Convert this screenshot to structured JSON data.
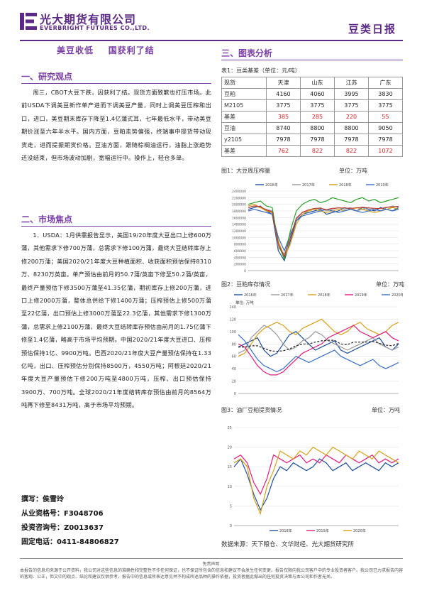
{
  "header": {
    "company_cn": "光大期货有限公司",
    "company_en": "EVERBRIGHT FUTURES CO.,LTD.",
    "report_title": "豆类日报",
    "brand_color": "#5b2a86"
  },
  "headline": "美豆收低    国获利了结",
  "left": {
    "section1_title": "一、研究观点",
    "section1_text": "周三，CBOT大豆下跌，因获利了结。现货方面致歉也打压市场。此前USDA下调美豆新作单产进而下调美豆产量，同时上调美豆压榨和出口，进口，美豆期末库存下降至1.4亿蒲式耳，七年最低水平，带动美豆期价涨至六年半水平。国内方面，豆粕走势偏强，终端事中提货带动现货走，进而提振期货价格。豆油方面，跟随棕榈油运行，油脂上涨趋势还没结束，但市场波动加剧，宽幅运行中。操作上，轻仓多单。",
    "section2_title": "二、市场焦点",
    "section2_text": "1．USDA：1月供需报告显示，美国19/20年度大豆出口上修600万蒲，其他需求下修700万蒲，总需求下修100万蒲，最终大豆结转库存上修200万蒲；美国2020/21年度大豆种植面积、收获面积预估保持8310万、8230万英亩。单产预估由前月的50.7蒲/英亩下修至50.2蒲/英亩，最终产量预估下修3500万蒲至41.35亿蒲，期初库存上修200万蒲，进口上修2000万蒲，整体总供给下修1400万蒲；压榨预估上修500万蒲至22亿蒲，出口预估上修3000万蒲至22.3亿蒲，其他需求下修1300万蒲，总需求上修2100万蒲，最终大豆结转库存预估由前月的1.75亿蒲下修至1.4亿蒲，略高于市场平均预期。中国2020/21年度大豆进口、压榨预估保持1亿、9900万吨。巴西2020/21年度大豆产量预估保持在1.33亿吨，出口、压榨预估分别保持8500万，4550万吨；阿根廷2020/21年度大豆产量预估下修200万吨至4800万吨，压榨、出口预估保持3900万、700万吨。全球2020/21年度结转库存预估由前月的8564万吨再下修至8431万吨，高于市场平均预期。",
    "author_label": "撰写：侯雪玲",
    "cert_label": "从业资格号：F3048706",
    "consult_label": "投资咨询号：Z0013637",
    "phone_label": "固定电话：0411-84806827"
  },
  "right": {
    "section3_title": "三、图表分析",
    "table_caption": "表1：豆类基差（单位：元/吨）",
    "table_header": [
      "现货",
      "天津",
      "山东",
      "江苏",
      "广东"
    ],
    "table_rows": [
      {
        "name": "豆粕",
        "values": [
          "4160",
          "4060",
          "3995",
          "3830"
        ],
        "red": false
      },
      {
        "name": "M2105",
        "values": [
          "3775",
          "3775",
          "3775",
          "3775"
        ],
        "red": false
      },
      {
        "name": "基差",
        "values": [
          "385",
          "285",
          "220",
          "55"
        ],
        "red": true
      },
      {
        "name": "豆油",
        "values": [
          "8740",
          "8800",
          "8800",
          "9050"
        ],
        "red": false
      },
      {
        "name": "y2105",
        "values": [
          "7978",
          "7978",
          "7978",
          "7978"
        ],
        "red": false
      },
      {
        "name": "基差",
        "values": [
          "762",
          "822",
          "822",
          "1072"
        ],
        "red": true
      }
    ],
    "chart1_caption": "图1：大豆周压榨量",
    "chart1_unit": "单位：万吨",
    "chart2_caption": "图2：豆粕库存情况",
    "chart2_unit": "单位：万吨",
    "chart3_caption": "图3：油厂豆粕提货情况",
    "chart3_unit": "单位：万吨",
    "source": "数据来源：天下粮仓、文华财经、光大期货研究所"
  },
  "chart_data": [
    {
      "type": "line",
      "title": "",
      "ylim": [
        0,
        2400000
      ],
      "yticks": [
        "2400000",
        "2200000",
        "2000000",
        "1800000",
        "1600000",
        "1400000",
        "1200000",
        "1000000",
        "800000",
        "600000",
        "400000",
        "200000",
        "0"
      ],
      "legend": "top",
      "series": [
        {
          "name": "2016年",
          "color": "#1f4e9c",
          "values": [
            1850000,
            1900000,
            1950000,
            1800000,
            1700000,
            600000,
            300000,
            900000,
            1500000,
            1700000,
            1750000,
            1800000,
            1850000,
            1700000,
            1750000,
            1800000,
            1900000,
            1850000,
            1800000,
            1900000,
            1850000,
            1800000,
            1900000,
            1850000,
            1800000,
            1900000
          ]
        },
        {
          "name": "2017年",
          "color": "#9a9a9a",
          "values": [
            1900000,
            1950000,
            1900000,
            1850000,
            1800000,
            700000,
            500000,
            1000000,
            1600000,
            1750000,
            1800000,
            1850000,
            1900000,
            1800000,
            1850000,
            1900000,
            1850000,
            1900000,
            1800000,
            1850000,
            1900000,
            1850000,
            1800000,
            1900000,
            1950000,
            1900000
          ]
        },
        {
          "name": "2018年",
          "color": "#d4a017",
          "values": [
            1950000,
            2000000,
            1900000,
            1800000,
            1750000,
            900000,
            400000,
            800000,
            1400000,
            1700000,
            1800000,
            1850000,
            1800000,
            1750000,
            1800000,
            1850000,
            1800000,
            1850000,
            1900000,
            1850000,
            1800000,
            1750000,
            1800000,
            1850000,
            1900000,
            1850000
          ]
        },
        {
          "name": "2019年",
          "color": "#3b6fc7",
          "values": [
            1800000,
            1850000,
            1800000,
            1750000,
            1700000,
            1000000,
            600000,
            1100000,
            1500000,
            1650000,
            1700000,
            1750000,
            1800000,
            1850000,
            1800000,
            1750000,
            1800000,
            1850000,
            1800000,
            1750000,
            1800000,
            1850000,
            1800000,
            1850000,
            1800000,
            1850000
          ]
        },
        {
          "name": "2020年",
          "color": "#2ca02c",
          "values": [
            2000000,
            2050000,
            2100000,
            1950000,
            1900000,
            800000,
            350000,
            1200000,
            1800000,
            2000000,
            2100000,
            2150000,
            2050000,
            2100000,
            2200000,
            2150000,
            2100000,
            2050000,
            2150000,
            2200000,
            2100000,
            2150000,
            2050000,
            2100000,
            2150000,
            2200000
          ]
        },
        {
          "name": "五年平均",
          "color": "#c0392b",
          "values": [
            1900000,
            1950000,
            1930000,
            1830000,
            1770000,
            800000,
            430000,
            1000000,
            1560000,
            1760000,
            1830000,
            1880000,
            1880000,
            1840000,
            1880000,
            1890000,
            1890000,
            1880000,
            1890000,
            1910000,
            1890000,
            1880000,
            1870000,
            1910000,
            1920000,
            1940000
          ]
        }
      ]
    },
    {
      "type": "line",
      "title": "",
      "ylim": [
        0,
        140
      ],
      "yticks": [
        "140",
        "120",
        "100",
        "80",
        "60",
        "40",
        "20",
        "0"
      ],
      "legend": "top",
      "series": [
        {
          "name": "2016年",
          "color": "#1f4e9c",
          "values": [
            75,
            80,
            85,
            90,
            70,
            60,
            65,
            80,
            95,
            100,
            90,
            80,
            70,
            75,
            80,
            85,
            70,
            65,
            70,
            75,
            80,
            85,
            90,
            75,
            70,
            80
          ]
        },
        {
          "name": "2017年",
          "color": "#9a9a9a",
          "values": [
            65,
            70,
            90,
            100,
            110,
            105,
            95,
            80,
            70,
            75,
            85,
            90,
            100,
            95,
            85,
            80,
            75,
            70,
            75,
            80,
            85,
            90,
            80,
            75,
            70,
            75
          ]
        },
        {
          "name": "2018年",
          "color": "#d4a017",
          "values": [
            60,
            65,
            80,
            95,
            105,
            110,
            115,
            110,
            100,
            95,
            105,
            110,
            115,
            120,
            110,
            100,
            95,
            100,
            110,
            115,
            105,
            100,
            95,
            100,
            110,
            115
          ]
        },
        {
          "name": "2019年",
          "color": "#e21b7a",
          "values": [
            80,
            75,
            60,
            45,
            35,
            30,
            30,
            35,
            45,
            55,
            65,
            70,
            75,
            80,
            90,
            95,
            100,
            105,
            110,
            100,
            95,
            90,
            95,
            100,
            90,
            85
          ]
        },
        {
          "name": "2020年",
          "color": "#3b6fc7",
          "values": [
            95,
            85,
            70,
            55,
            45,
            40,
            35,
            40,
            50,
            60,
            55,
            50,
            55,
            60,
            65,
            70,
            60,
            55,
            50,
            45,
            50,
            55,
            45,
            40,
            45,
            50
          ]
        },
        {
          "name": "五年平均",
          "color": "#222222",
          "values": [
            75,
            75,
            77,
            77,
            73,
            69,
            68,
            69,
            72,
            77,
            80,
            80,
            83,
            85,
            86,
            86,
            80,
            79,
            83,
            83,
            83,
            84,
            81,
            78,
            77,
            81
          ]
        }
      ]
    },
    {
      "type": "line",
      "title": "",
      "ylim": [
        0,
        25
      ],
      "yticks": [
        "25",
        "20",
        "15",
        "10",
        "5",
        "0"
      ],
      "legend": "bottom",
      "series": [
        {
          "name": "2018年",
          "color": "#1f4e9c",
          "values": [
            15,
            17,
            13,
            8,
            4,
            7,
            12,
            15,
            14,
            16,
            15,
            14,
            15,
            17,
            16,
            14,
            15,
            16,
            14,
            15,
            16,
            15,
            14,
            16,
            15,
            16
          ]
        },
        {
          "name": "2019年",
          "color": "#e21b7a",
          "values": [
            17,
            18,
            16,
            11,
            8,
            12,
            18,
            17,
            16,
            17,
            18,
            16,
            17,
            16,
            18,
            17,
            16,
            18,
            17,
            16,
            17,
            18,
            16,
            17,
            16,
            17
          ]
        },
        {
          "name": "2020年",
          "color": "#d4a017",
          "values": [
            16,
            17,
            15,
            7,
            3,
            10,
            14,
            19,
            18,
            17,
            19,
            18,
            20,
            19,
            18,
            20,
            19,
            18,
            17,
            19,
            18,
            17,
            19,
            18,
            17,
            16
          ]
        }
      ]
    }
  ],
  "footer": {
    "disclaimer_title": "免责声明",
    "disclaimer": "本报告的信息均来源于公开资料，我公司对这些信息的准确性和完整性不作任何保证，也不保证所包含的信息和建议不会发生任何变更。报告仅限向我公司客户中的专业投资者客户。我公司已力求报告内容的客观、公正，但文中的观点、结论和建议仅供参考，报告中的信息或所表达意见并不构成所述品种的操作依据，投资者据此做出的任何投资决策与本公司和作者无关。"
  }
}
